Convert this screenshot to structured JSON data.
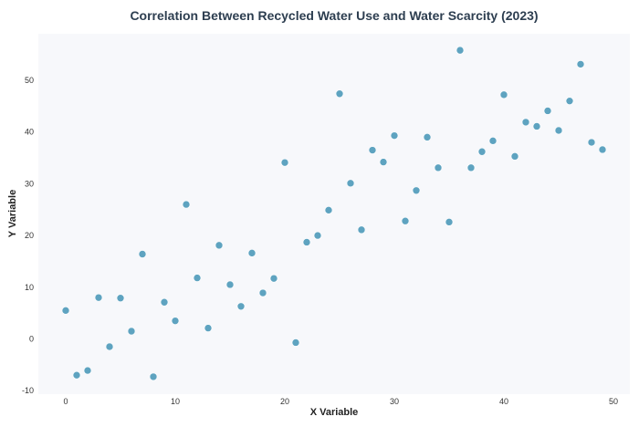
{
  "chart_data": {
    "type": "scatter",
    "title": "Correlation Between Recycled Water Use and Water Scarcity (2023)",
    "xlabel": "X Variable",
    "ylabel": "Y Variable",
    "xlim": [
      -2.5,
      51.5
    ],
    "ylim": [
      -10,
      60
    ],
    "xticks": [
      0,
      10,
      20,
      30,
      40,
      50
    ],
    "yticks": [
      -10,
      0,
      10,
      20,
      30,
      40,
      50
    ],
    "grid": false,
    "colors": {
      "point": "#5ea3c0",
      "plot_background": "#f7f8fb",
      "title": "#2d3e50"
    },
    "x": [
      0,
      1,
      2,
      3,
      4,
      5,
      6,
      7,
      8,
      9,
      10,
      11,
      12,
      13,
      14,
      15,
      16,
      17,
      18,
      19,
      20,
      21,
      22,
      23,
      24,
      25,
      26,
      27,
      28,
      29,
      30,
      31,
      32,
      33,
      34,
      35,
      36,
      37,
      38,
      39,
      40,
      41,
      42,
      43,
      44,
      45,
      46,
      47,
      48,
      49
    ],
    "y": [
      5.5,
      -7.0,
      -6.1,
      8.0,
      -1.5,
      7.9,
      1.5,
      16.4,
      -7.3,
      7.1,
      3.5,
      26.0,
      11.8,
      2.1,
      18.1,
      10.5,
      6.3,
      16.6,
      8.9,
      11.7,
      34.1,
      -0.7,
      18.7,
      20.0,
      24.9,
      47.4,
      30.1,
      21.1,
      36.5,
      34.2,
      39.3,
      22.8,
      28.7,
      39.0,
      33.1,
      22.6,
      55.8,
      33.1,
      36.2,
      38.3,
      47.2,
      35.3,
      41.9,
      41.1,
      44.1,
      40.3,
      46.0,
      53.1,
      38.0,
      36.6
    ]
  }
}
